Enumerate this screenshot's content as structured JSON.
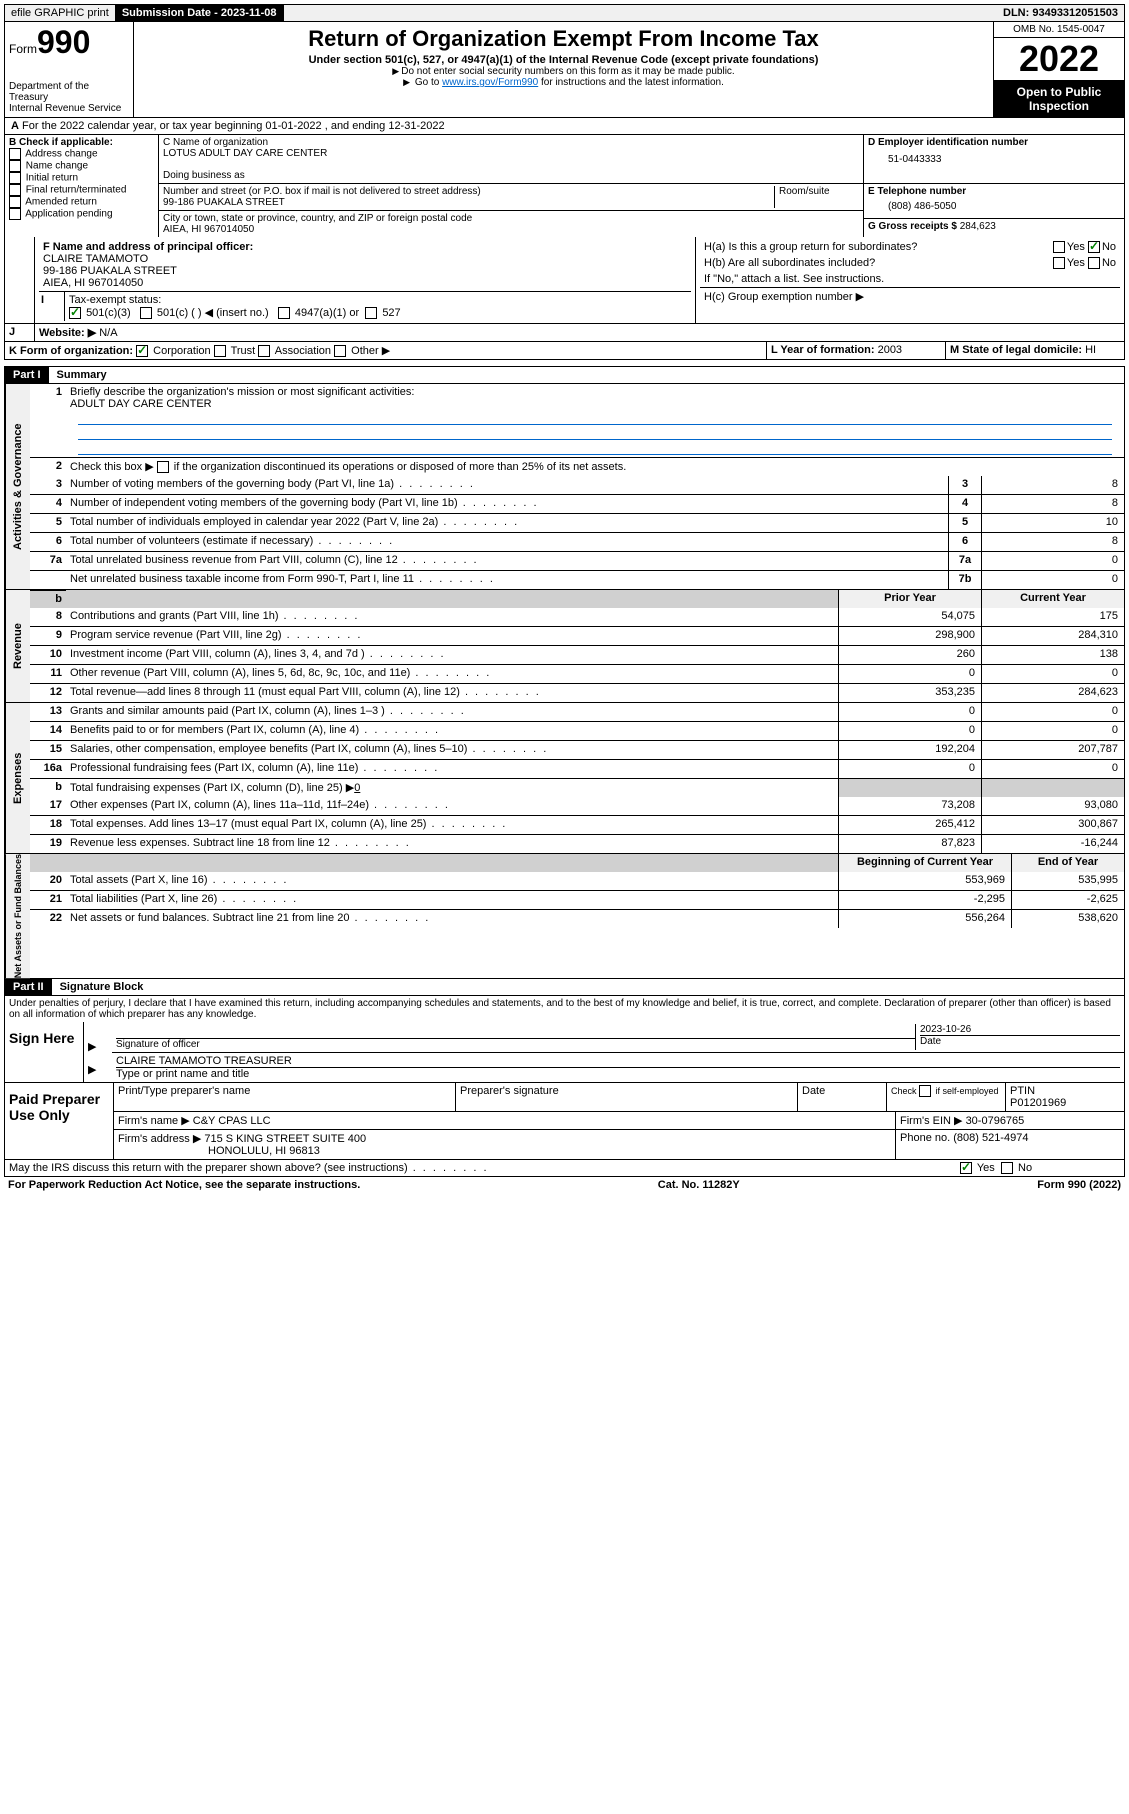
{
  "topbar": {
    "efile": "efile GRAPHIC print",
    "submission_label": "Submission Date - 2023-11-08",
    "dln": "DLN: 93493312051503"
  },
  "header": {
    "form_label": "Form",
    "form_number": "990",
    "dept": "Department of the Treasury",
    "irs": "Internal Revenue Service",
    "title": "Return of Organization Exempt From Income Tax",
    "subtitle": "Under section 501(c), 527, or 4947(a)(1) of the Internal Revenue Code (except private foundations)",
    "note1": "Do not enter social security numbers on this form as it may be made public.",
    "note2_pre": "Go to ",
    "note2_link": "www.irs.gov/Form990",
    "note2_post": " for instructions and the latest information.",
    "omb": "OMB No. 1545-0047",
    "year": "2022",
    "open": "Open to Public Inspection"
  },
  "row_a": "For the 2022 calendar year, or tax year beginning 01-01-2022   , and ending 12-31-2022",
  "section_b": {
    "label": "B Check if applicable:",
    "items": [
      "Address change",
      "Name change",
      "Initial return",
      "Final return/terminated",
      "Amended return",
      "Application pending"
    ]
  },
  "section_c": {
    "name_label": "C Name of organization",
    "name": "LOTUS ADULT DAY CARE CENTER",
    "dba_label": "Doing business as",
    "dba": "",
    "street_label": "Number and street (or P.O. box if mail is not delivered to street address)",
    "room_label": "Room/suite",
    "street": "99-186 PUAKALA STREET",
    "city_label": "City or town, state or province, country, and ZIP or foreign postal code",
    "city": "AIEA, HI  967014050"
  },
  "section_d": {
    "label": "D Employer identification number",
    "value": "51-0443333"
  },
  "section_e": {
    "label": "E Telephone number",
    "value": "(808) 486-5050"
  },
  "section_g": {
    "label": "G Gross receipts $",
    "value": "284,623"
  },
  "section_f": {
    "label": "F Name and address of principal officer:",
    "name": "CLAIRE TAMAMOTO",
    "addr1": "99-186 PUAKALA STREET",
    "addr2": "AIEA, HI  967014050"
  },
  "section_h": {
    "a": "H(a)  Is this a group return for subordinates?",
    "b": "H(b)  Are all subordinates included?",
    "b_note": "If \"No,\" attach a list. See instructions.",
    "c": "H(c)  Group exemption number ▶",
    "yes": "Yes",
    "no": "No"
  },
  "row_i": {
    "label": "Tax-exempt status:",
    "opt1": "501(c)(3)",
    "opt2": "501(c) (  ) ◀ (insert no.)",
    "opt3": "4947(a)(1) or",
    "opt4": "527"
  },
  "row_j": {
    "label": "Website: ▶",
    "value": "N/A"
  },
  "row_k": {
    "label": "K Form of organization:",
    "opts": [
      "Corporation",
      "Trust",
      "Association",
      "Other ▶"
    ]
  },
  "row_l": {
    "label": "L Year of formation:",
    "value": "2003"
  },
  "row_m": {
    "label": "M State of legal domicile:",
    "value": "HI"
  },
  "part1": {
    "header": "Part I",
    "title": "Summary"
  },
  "governance": {
    "label": "Activities & Governance",
    "q1": "Briefly describe the organization's mission or most significant activities:",
    "q1_answer": "ADULT DAY CARE CENTER",
    "q2": "Check this box ▶       if the organization discontinued its operations or disposed of more than 25% of its net assets.",
    "rows": [
      {
        "n": "3",
        "desc": "Number of voting members of the governing body (Part VI, line 1a)",
        "box": "3",
        "val": "8"
      },
      {
        "n": "4",
        "desc": "Number of independent voting members of the governing body (Part VI, line 1b)",
        "box": "4",
        "val": "8"
      },
      {
        "n": "5",
        "desc": "Total number of individuals employed in calendar year 2022 (Part V, line 2a)",
        "box": "5",
        "val": "10"
      },
      {
        "n": "6",
        "desc": "Total number of volunteers (estimate if necessary)",
        "box": "6",
        "val": "8"
      },
      {
        "n": "7a",
        "desc": "Total unrelated business revenue from Part VIII, column (C), line 12",
        "box": "7a",
        "val": "0"
      },
      {
        "n": "",
        "desc": "Net unrelated business taxable income from Form 990-T, Part I, line 11",
        "box": "7b",
        "val": "0"
      }
    ]
  },
  "col_headers": {
    "prior": "Prior Year",
    "current": "Current Year",
    "begin": "Beginning of Current Year",
    "end": "End of Year"
  },
  "revenue": {
    "label": "Revenue",
    "rows": [
      {
        "n": "8",
        "desc": "Contributions and grants (Part VIII, line 1h)",
        "prior": "54,075",
        "curr": "175"
      },
      {
        "n": "9",
        "desc": "Program service revenue (Part VIII, line 2g)",
        "prior": "298,900",
        "curr": "284,310"
      },
      {
        "n": "10",
        "desc": "Investment income (Part VIII, column (A), lines 3, 4, and 7d )",
        "prior": "260",
        "curr": "138"
      },
      {
        "n": "11",
        "desc": "Other revenue (Part VIII, column (A), lines 5, 6d, 8c, 9c, 10c, and 11e)",
        "prior": "0",
        "curr": "0"
      },
      {
        "n": "12",
        "desc": "Total revenue—add lines 8 through 11 (must equal Part VIII, column (A), line 12)",
        "prior": "353,235",
        "curr": "284,623"
      }
    ]
  },
  "expenses": {
    "label": "Expenses",
    "rows": [
      {
        "n": "13",
        "desc": "Grants and similar amounts paid (Part IX, column (A), lines 1–3 )",
        "prior": "0",
        "curr": "0"
      },
      {
        "n": "14",
        "desc": "Benefits paid to or for members (Part IX, column (A), line 4)",
        "prior": "0",
        "curr": "0"
      },
      {
        "n": "15",
        "desc": "Salaries, other compensation, employee benefits (Part IX, column (A), lines 5–10)",
        "prior": "192,204",
        "curr": "207,787"
      },
      {
        "n": "16a",
        "desc": "Professional fundraising fees (Part IX, column (A), line 11e)",
        "prior": "0",
        "curr": "0"
      }
    ],
    "row_b": {
      "n": "b",
      "desc": "Total fundraising expenses (Part IX, column (D), line 25) ▶",
      "val": "0"
    },
    "rows2": [
      {
        "n": "17",
        "desc": "Other expenses (Part IX, column (A), lines 11a–11d, 11f–24e)",
        "prior": "73,208",
        "curr": "93,080"
      },
      {
        "n": "18",
        "desc": "Total expenses. Add lines 13–17 (must equal Part IX, column (A), line 25)",
        "prior": "265,412",
        "curr": "300,867"
      },
      {
        "n": "19",
        "desc": "Revenue less expenses. Subtract line 18 from line 12",
        "prior": "87,823",
        "curr": "-16,244"
      }
    ]
  },
  "netassets": {
    "label": "Net Assets or Fund Balances",
    "rows": [
      {
        "n": "20",
        "desc": "Total assets (Part X, line 16)",
        "prior": "553,969",
        "curr": "535,995"
      },
      {
        "n": "21",
        "desc": "Total liabilities (Part X, line 26)",
        "prior": "-2,295",
        "curr": "-2,625"
      },
      {
        "n": "22",
        "desc": "Net assets or fund balances. Subtract line 21 from line 20",
        "prior": "556,264",
        "curr": "538,620"
      }
    ]
  },
  "part2": {
    "header": "Part II",
    "title": "Signature Block",
    "declaration": "Under penalties of perjury, I declare that I have examined this return, including accompanying schedules and statements, and to the best of my knowledge and belief, it is true, correct, and complete. Declaration of preparer (other than officer) is based on all information of which preparer has any knowledge."
  },
  "sign": {
    "label": "Sign Here",
    "sig_label": "Signature of officer",
    "date_label": "Date",
    "date": "2023-10-26",
    "name": "CLAIRE TAMAMOTO  TREASURER",
    "name_label": "Type or print name and title"
  },
  "preparer": {
    "label": "Paid Preparer Use Only",
    "name_label": "Print/Type preparer's name",
    "sig_label": "Preparer's signature",
    "date_label": "Date",
    "check_label": "Check        if self-employed",
    "ptin_label": "PTIN",
    "ptin": "P01201969",
    "firm_name_label": "Firm's name    ▶",
    "firm_name": "C&Y CPAS LLC",
    "firm_ein_label": "Firm's EIN ▶",
    "firm_ein": "30-0796765",
    "firm_addr_label": "Firm's address ▶",
    "firm_addr1": "715 S KING STREET SUITE 400",
    "firm_addr2": "HONOLULU, HI  96813",
    "phone_label": "Phone no.",
    "phone": "(808) 521-4974"
  },
  "discuss": {
    "q": "May the IRS discuss this return with the preparer shown above? (see instructions)",
    "yes": "Yes",
    "no": "No"
  },
  "footer": {
    "left": "For Paperwork Reduction Act Notice, see the separate instructions.",
    "center": "Cat. No. 11282Y",
    "right": "Form 990 (2022)"
  }
}
